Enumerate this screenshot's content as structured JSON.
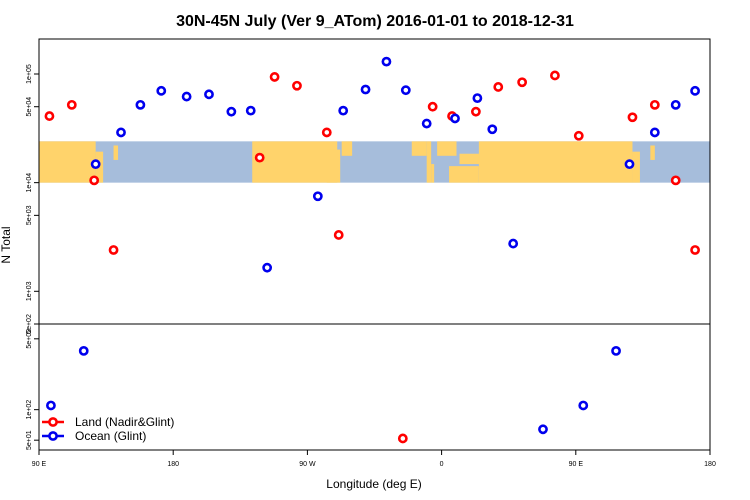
{
  "chart_data": {
    "type": "scatter",
    "title": "30N-45N July (Ver 9_ATom)   2016-01-01 to 2018-12-31",
    "xlabel": "Longitude (deg E)",
    "ylabel": "N Total",
    "x_ticks": [
      {
        "value": 90,
        "label": "90 E"
      },
      {
        "value": 180,
        "label": "180"
      },
      {
        "value": 270,
        "label": "90 W"
      },
      {
        "value": 360,
        "label": "0"
      },
      {
        "value": 450,
        "label": "90 E"
      },
      {
        "value": 540,
        "label": "180"
      }
    ],
    "xlim": [
      90,
      540
    ],
    "x_note": "longitude unwrapped eastward from 90 E",
    "upper_panel": {
      "scale": "log",
      "ylim": [
        500,
        210000
      ],
      "y_ticks": [
        {
          "value": 500,
          "label": "5e+02"
        },
        {
          "value": 1000,
          "label": "1e+03"
        },
        {
          "value": 5000,
          "label": "5e+03"
        },
        {
          "value": 10000,
          "label": "1e+04"
        },
        {
          "value": 50000,
          "label": "5e+04"
        },
        {
          "value": 100000,
          "label": "1e+05"
        }
      ],
      "map_band": {
        "from": 10000,
        "to": 24000,
        "land_color": "#FFD36B",
        "ocean_color": "#A6BDDB"
      }
    },
    "lower_panel": {
      "scale": "log",
      "ylim": [
        40,
        700
      ],
      "y_ticks": [
        {
          "value": 50,
          "label": "5e+01"
        },
        {
          "value": 100,
          "label": "1e+02"
        },
        {
          "value": 500,
          "label": "5e+02"
        }
      ]
    },
    "series": [
      {
        "name": "Land (Nadir&Glint)",
        "color": "#FF0000",
        "upper": [
          {
            "x": 97,
            "y": 41000
          },
          {
            "x": 112,
            "y": 52000
          },
          {
            "x": 127,
            "y": 10500
          },
          {
            "x": 140,
            "y": 2400
          },
          {
            "x": 238,
            "y": 17000
          },
          {
            "x": 248,
            "y": 94000
          },
          {
            "x": 263,
            "y": 78000
          },
          {
            "x": 283,
            "y": 29000
          },
          {
            "x": 291,
            "y": 3300
          },
          {
            "x": 354,
            "y": 50000
          },
          {
            "x": 367,
            "y": 41000
          },
          {
            "x": 383,
            "y": 45000
          },
          {
            "x": 398,
            "y": 76000
          },
          {
            "x": 414,
            "y": 84000
          },
          {
            "x": 436,
            "y": 97000
          },
          {
            "x": 452,
            "y": 27000
          },
          {
            "x": 488,
            "y": 40000
          },
          {
            "x": 503,
            "y": 52000
          },
          {
            "x": 517,
            "y": 10500
          },
          {
            "x": 530,
            "y": 2400
          }
        ],
        "lower": [
          {
            "x": 334,
            "y": 52
          }
        ]
      },
      {
        "name": "Ocean (Glint)",
        "color": "#0000EE",
        "upper": [
          {
            "x": 128,
            "y": 14800
          },
          {
            "x": 145,
            "y": 29000
          },
          {
            "x": 158,
            "y": 52000
          },
          {
            "x": 172,
            "y": 70000
          },
          {
            "x": 189,
            "y": 62000
          },
          {
            "x": 204,
            "y": 65000
          },
          {
            "x": 219,
            "y": 45000
          },
          {
            "x": 232,
            "y": 46000
          },
          {
            "x": 243,
            "y": 1650
          },
          {
            "x": 277,
            "y": 7500
          },
          {
            "x": 294,
            "y": 46000
          },
          {
            "x": 309,
            "y": 72000
          },
          {
            "x": 323,
            "y": 130000
          },
          {
            "x": 336,
            "y": 71000
          },
          {
            "x": 350,
            "y": 35000
          },
          {
            "x": 369,
            "y": 39000
          },
          {
            "x": 384,
            "y": 60000
          },
          {
            "x": 394,
            "y": 31000
          },
          {
            "x": 408,
            "y": 2750
          },
          {
            "x": 486,
            "y": 14800
          },
          {
            "x": 503,
            "y": 29000
          },
          {
            "x": 517,
            "y": 52000
          },
          {
            "x": 530,
            "y": 70000
          }
        ],
        "lower": [
          {
            "x": 98,
            "y": 110
          },
          {
            "x": 120,
            "y": 380
          },
          {
            "x": 428,
            "y": 64
          },
          {
            "x": 455,
            "y": 110
          },
          {
            "x": 477,
            "y": 380
          }
        ]
      }
    ],
    "legend": {
      "position": "bottom-left",
      "entries": [
        "Land (Nadir&Glint)",
        "Ocean (Glint)"
      ]
    }
  }
}
